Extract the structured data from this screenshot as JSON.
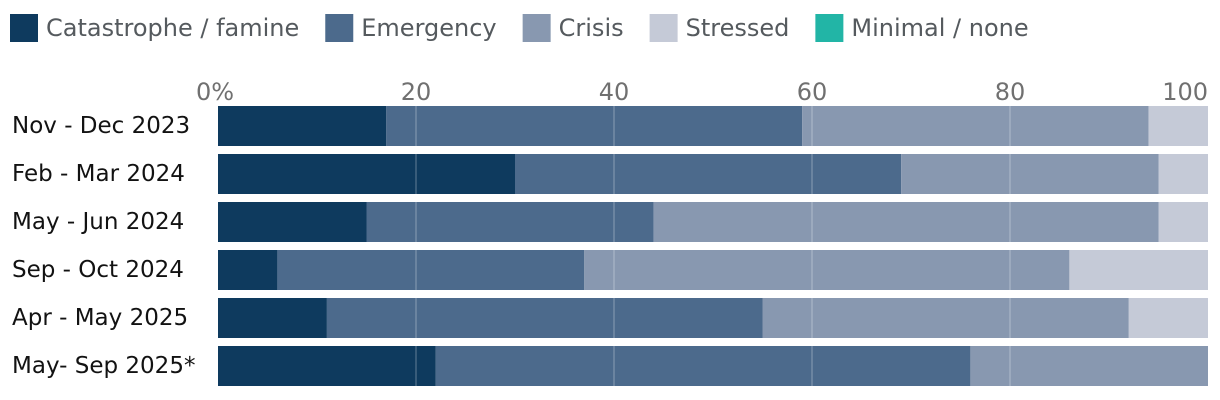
{
  "chart_data": {
    "type": "bar",
    "orientation": "horizontal",
    "stacked": true,
    "title": "",
    "xlabel": "",
    "ylabel": "",
    "xlim": [
      0,
      100
    ],
    "grid": true,
    "legend_position": "top-left",
    "ticks": [
      {
        "value": 0,
        "label": "0%"
      },
      {
        "value": 20,
        "label": "20"
      },
      {
        "value": 40,
        "label": "40"
      },
      {
        "value": 60,
        "label": "60"
      },
      {
        "value": 80,
        "label": "80"
      },
      {
        "value": 100,
        "label": "100"
      }
    ],
    "categories": [
      "Nov - Dec 2023",
      "Feb - Mar 2024",
      "May - Jun 2024",
      "Sep - Oct 2024",
      "Apr - May 2025",
      "May- Sep 2025*"
    ],
    "series": [
      {
        "name": "Catastrophe / famine",
        "color": "#0e3a5e",
        "values": [
          17,
          30,
          15,
          6,
          11,
          22
        ]
      },
      {
        "name": "Emergency",
        "color": "#4c6a8c",
        "values": [
          42,
          39,
          29,
          31,
          44,
          54
        ]
      },
      {
        "name": "Crisis",
        "color": "#8898b0",
        "values": [
          35,
          26,
          51,
          49,
          37,
          24
        ]
      },
      {
        "name": "Stressed",
        "color": "#c5cad7",
        "values": [
          6,
          5,
          5,
          14,
          8,
          0
        ]
      },
      {
        "name": "Minimal / none",
        "color": "#22b5a6",
        "values": [
          0,
          0,
          0.5,
          0,
          0,
          0
        ]
      }
    ]
  }
}
